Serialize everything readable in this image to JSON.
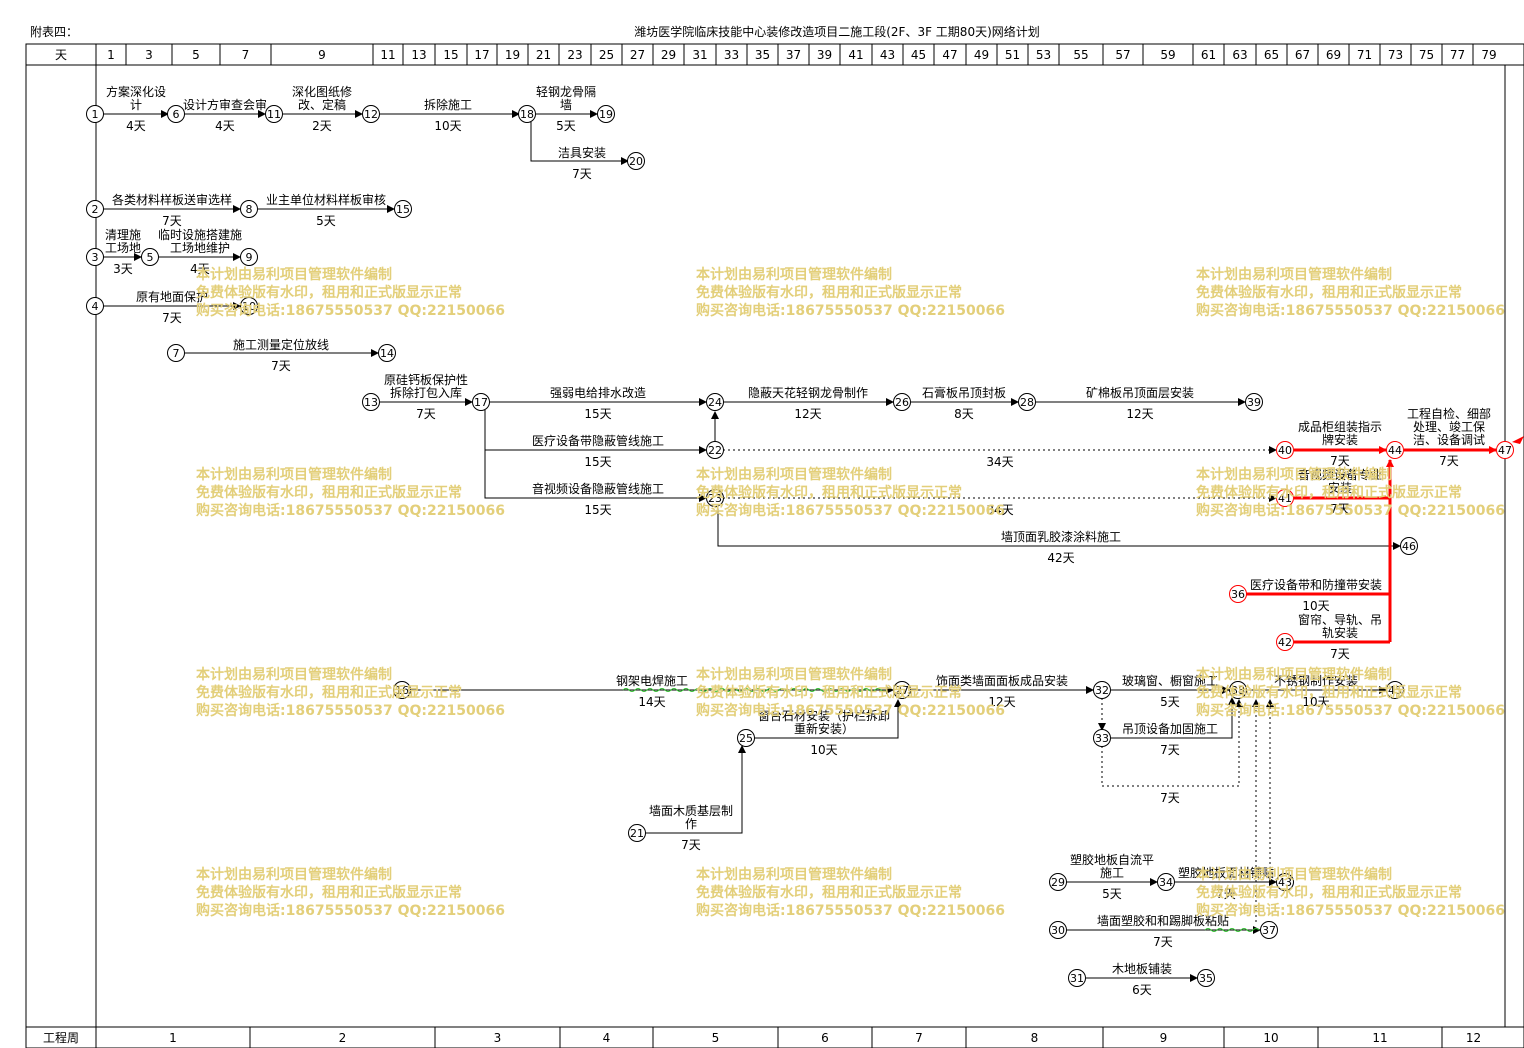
{
  "header": {
    "appendix": "附表四：",
    "title": "潍坊医学院临床技能中心装修改造项目二施工段(2F、3F 工期80天)网络计划"
  },
  "timescale": {
    "top_label": "天",
    "day_ticks": [
      "1",
      "3",
      "5",
      "7",
      "9",
      "11",
      "13",
      "15",
      "17",
      "19",
      "21",
      "23",
      "25",
      "27",
      "29",
      "31",
      "33",
      "35",
      "37",
      "39",
      "41",
      "43",
      "45",
      "47",
      "49",
      "51",
      "53",
      "55",
      "57",
      "59",
      "61",
      "63",
      "65",
      "67",
      "69",
      "71",
      "73",
      "75",
      "77",
      "79"
    ],
    "bottom_label": "工程周",
    "weeks": [
      "1",
      "2",
      "3",
      "4",
      "5",
      "6",
      "7",
      "8",
      "9",
      "10",
      "11",
      "12"
    ]
  },
  "watermark": {
    "line1": "本计划由易利项目管理软件编制",
    "line2": "免费体验版有水印，租用和正式版显示正常",
    "line3": "购买咨询电话:18675550537 QQ:22150066"
  },
  "colors": {
    "critical": "#ff0000",
    "normal": "#000000",
    "watermark": "#e3cf7a",
    "wavy": "#00c000"
  },
  "network": {
    "nodes": [
      "1",
      "2",
      "3",
      "4",
      "5",
      "6",
      "7",
      "8",
      "9",
      "10",
      "11",
      "12",
      "13",
      "14",
      "15",
      "16",
      "17",
      "18",
      "19",
      "20",
      "21",
      "22",
      "23",
      "24",
      "25",
      "26",
      "27",
      "28",
      "29",
      "30",
      "31",
      "32",
      "33",
      "34",
      "35",
      "36",
      "37",
      "38",
      "39",
      "40",
      "41",
      "42",
      "43",
      "44",
      "45",
      "46",
      "47"
    ],
    "critical_nodes": [
      "36",
      "40",
      "41",
      "42",
      "44",
      "47"
    ],
    "activities": [
      {
        "from": "1",
        "to": "6",
        "name": "方案深化设计",
        "duration": "4天"
      },
      {
        "from": "6",
        "to": "11",
        "name": "设计方审查会审",
        "duration": "4天"
      },
      {
        "from": "11",
        "to": "12",
        "name": "深化图纸修改、定稿",
        "duration": "2天"
      },
      {
        "from": "12",
        "to": "18",
        "name": "拆除施工",
        "duration": "10天"
      },
      {
        "from": "18",
        "to": "19",
        "name": "轻钢龙骨隔墙",
        "duration": "5天"
      },
      {
        "from": "18",
        "to": "20",
        "name": "洁具安装",
        "duration": "7天"
      },
      {
        "from": "2",
        "to": "8",
        "name": "各类材料样板送审选样",
        "duration": "7天"
      },
      {
        "from": "8",
        "to": "15",
        "name": "业主单位材料样板审核",
        "duration": "5天"
      },
      {
        "from": "3",
        "to": "5",
        "name": "清理施工场地",
        "duration": "3天"
      },
      {
        "from": "5",
        "to": "9",
        "name": "临时设施搭建施工场地维护",
        "duration": "4天"
      },
      {
        "from": "4",
        "to": "10",
        "name": "原有地面保护",
        "duration": "7天"
      },
      {
        "from": "7",
        "to": "14",
        "name": "施工测量定位放线",
        "duration": "7天"
      },
      {
        "from": "13",
        "to": "17",
        "name": "原硅钙板保护性拆除打包入库",
        "duration": "7天"
      },
      {
        "from": "17",
        "to": "24",
        "name": "强弱电给排水改造",
        "duration": "15天"
      },
      {
        "from": "17",
        "to": "22",
        "name": "医疗设备带隐蔽管线施工",
        "duration": "15天"
      },
      {
        "from": "17",
        "to": "23",
        "name": "音视频设备隐蔽管线施工",
        "duration": "15天"
      },
      {
        "from": "24",
        "to": "26",
        "name": "隐蔽天花轻钢龙骨制作",
        "duration": "12天"
      },
      {
        "from": "26",
        "to": "28",
        "name": "石膏板吊顶封板",
        "duration": "8天"
      },
      {
        "from": "28",
        "to": "39",
        "name": "矿棉板吊顶面层安装",
        "duration": "12天"
      },
      {
        "from": "22",
        "to": "40",
        "name": "",
        "duration": "34天"
      },
      {
        "from": "23",
        "to": "41",
        "name": "",
        "duration": "34天"
      },
      {
        "from": "40",
        "to": "44",
        "name": "成品柜组装指示牌安装",
        "duration": "7天"
      },
      {
        "from": "41",
        "to": "44",
        "name": "音视频设备专业安装",
        "duration": "7天"
      },
      {
        "from": "44",
        "to": "47",
        "name": "工程自检、细部处理、竣工保洁、设备调试",
        "duration": "7天"
      },
      {
        "from": "23",
        "to": "46",
        "name": "墙顶面乳胶漆涂料施工",
        "duration": "42天"
      },
      {
        "from": "36",
        "to": "44",
        "name": "医疗设备带和防撞带安装",
        "duration": "10天"
      },
      {
        "from": "42",
        "to": "44",
        "name": "窗帘、导轨、吊轨安装",
        "duration": "7天"
      },
      {
        "from": "16",
        "to": "27",
        "name": "钢架电焊施工",
        "duration": "14天"
      },
      {
        "from": "25",
        "to": "27",
        "name": "窗台石材安装（护栏拆卸重新安装）",
        "duration": "10天"
      },
      {
        "from": "21",
        "to": "25",
        "name": "墙面木质基层制作",
        "duration": "7天"
      },
      {
        "from": "27",
        "to": "32",
        "name": "饰面类墙面面板成品安装",
        "duration": "12天"
      },
      {
        "from": "32",
        "to": "38",
        "name": "玻璃窗、橱窗施工",
        "duration": "5天"
      },
      {
        "from": "33",
        "to": "38",
        "name": "吊顶设备加固施工",
        "duration": "7天"
      },
      {
        "from": "32",
        "to": "38",
        "name": "",
        "duration": "7天"
      },
      {
        "from": "38",
        "to": "45",
        "name": "不锈钢制作安装",
        "duration": "10天"
      },
      {
        "from": "29",
        "to": "34",
        "name": "塑胶地板自流平施工",
        "duration": "5天"
      },
      {
        "from": "34",
        "to": "43",
        "name": "塑胶地板面材铺贴",
        "duration": "7天"
      },
      {
        "from": "30",
        "to": "37",
        "name": "墙面塑胶和和踢脚板粘贴",
        "duration": "7天"
      },
      {
        "from": "31",
        "to": "35",
        "name": "木地板铺装",
        "duration": "6天"
      }
    ]
  },
  "labels": {
    "a1": "方案深化设",
    "a1b": "计",
    "a1d": "4天",
    "a2": "设计方审查会审",
    "a2d": "4天",
    "a3": "深化图纸修",
    "a3b": "改、定稿",
    "a3d": "2天",
    "a4": "拆除施工",
    "a4d": "10天",
    "a5": "轻钢龙骨隔",
    "a5b": "墙",
    "a5d": "5天",
    "a6": "洁具安装",
    "a6d": "7天",
    "a7": "各类材料样板送审选样",
    "a7d": "7天",
    "a8": "业主单位材料样板审核",
    "a8d": "5天",
    "a9": "清理施",
    "a9b": "工场地",
    "a9d": "3天",
    "a10": "临时设施搭建施",
    "a10b": "工场地维护",
    "a10d": "4天",
    "a11": "原有地面保护",
    "a11d": "7天",
    "a12": "施工测量定位放线",
    "a12d": "7天",
    "a13": "原硅钙板保护性",
    "a13b": "拆除打包入库",
    "a13d": "7天",
    "a14": "强弱电给排水改造",
    "a14d": "15天",
    "a15": "医疗设备带隐蔽管线施工",
    "a15d": "15天",
    "a16": "音视频设备隐蔽管线施工",
    "a16d": "15天",
    "a17": "隐蔽天花轻钢龙骨制作",
    "a17d": "12天",
    "a18": "石膏板吊顶封板",
    "a18d": "8天",
    "a19": "矿棉板吊顶面层安装",
    "a19d": "12天",
    "a20d": "34天",
    "a21d": "34天",
    "a22": "成品柜组装指示",
    "a22b": "牌安装",
    "a22d": "7天",
    "a23": "音视频设备专业",
    "a23b": "安装",
    "a23d": "7天",
    "a24": "工程自检、细部",
    "a24b": "处理、竣工保",
    "a24c": "洁、设备调试",
    "a24d": "7天",
    "a25": "墙顶面乳胶漆涂料施工",
    "a25d": "42天",
    "a26": "医疗设备带和防撞带安装",
    "a26d": "10天",
    "a27": "窗帘、导轨、吊",
    "a27b": "轨安装",
    "a27d": "7天",
    "a28": "钢架电焊施工",
    "a28d": "14天",
    "a29": "窗台石材安装（护栏拆卸",
    "a29b": "重新安装）",
    "a29d": "10天",
    "a30": "墙面木质基层制",
    "a30b": "作",
    "a30d": "7天",
    "a31": "饰面类墙面面板成品安装",
    "a31d": "12天",
    "a32": "玻璃窗、橱窗施工",
    "a32d": "5天",
    "a33": "吊顶设备加固施工",
    "a33d": "7天",
    "a34d": "7天",
    "a35": "不锈钢制作安装",
    "a35d": "10天",
    "a36": "塑胶地板自流平",
    "a36b": "施工",
    "a36d": "5天",
    "a37": "塑胶地板面材铺贴",
    "a37d": "7天",
    "a38": "墙面塑胶和和踢脚板粘贴",
    "a38d": "7天",
    "a39": "木地板铺装",
    "a39d": "6天"
  }
}
